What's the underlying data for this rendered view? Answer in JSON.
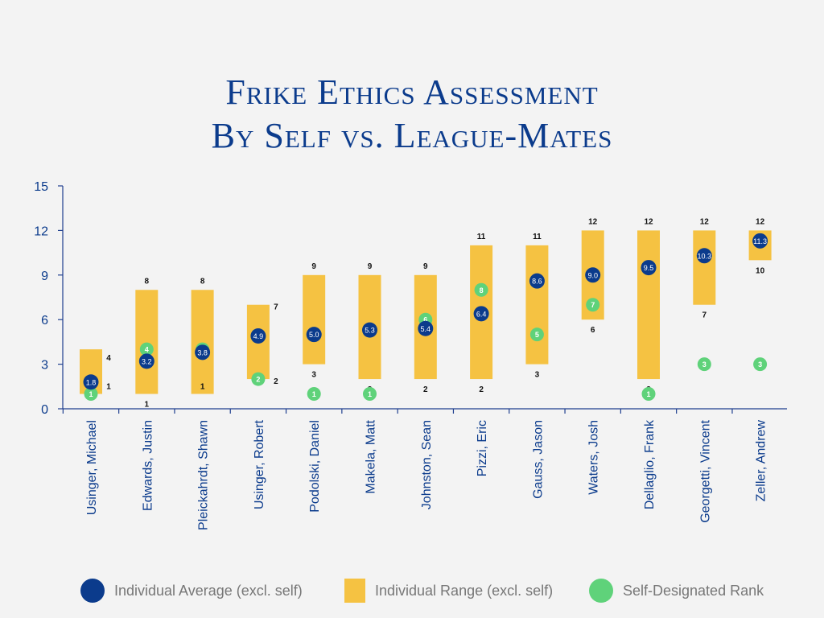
{
  "title": {
    "line1": "Frike Ethics Assessment",
    "line2": "By Self vs. League-Mates"
  },
  "colors": {
    "average": "#0b3b8c",
    "range": "#f5c242",
    "self_rank": "#5fd27a",
    "axis": "#1f3f8f",
    "tick_text": "#0b3b8c",
    "label_text": "#0b3b8c"
  },
  "legend": [
    {
      "key": "average",
      "label": "Individual Average (excl. self)"
    },
    {
      "key": "range",
      "label": "Individual Range (excl. self)"
    },
    {
      "key": "self_rank",
      "label": "Self-Designated Rank"
    }
  ],
  "chart_data": {
    "type": "bar",
    "ylim": [
      0,
      15
    ],
    "yticks": [
      0,
      3,
      6,
      9,
      12,
      15
    ],
    "grid": false,
    "legend_position": "bottom",
    "categories": [
      "Usinger, Michael",
      "Edwards, Justin",
      "Pleickahrdt, Shawn",
      "Usinger, Robert",
      "Podolski, Daniel",
      "Makela, Matt",
      "Johnston, Sean",
      "Pizzi, Eric",
      "Gauss, Jason",
      "Waters, Josh",
      "Dellaglio, Frank",
      "Georgetti, Vincent",
      "Zeller, Andrew"
    ],
    "series": [
      {
        "name": "Individual Range (excl. self) - Min",
        "values": [
          1,
          1,
          1,
          2,
          3,
          2,
          2,
          2,
          3,
          6,
          2,
          7,
          10
        ]
      },
      {
        "name": "Individual Range (excl. self) - Max",
        "values": [
          4,
          8,
          8,
          7,
          9,
          9,
          9,
          11,
          11,
          12,
          12,
          12,
          12
        ]
      },
      {
        "name": "Individual Average (excl. self)",
        "values": [
          1.8,
          3.2,
          3.8,
          4.9,
          5.0,
          5.3,
          5.4,
          6.4,
          8.6,
          9.0,
          9.5,
          10.3,
          11.3
        ]
      },
      {
        "name": "Self-Designated Rank",
        "values": [
          1,
          4,
          4,
          2,
          1,
          1,
          6,
          8,
          5,
          7,
          1,
          3,
          3
        ]
      }
    ],
    "min_labels": [
      "1",
      "1",
      "1",
      "2",
      "3",
      "2",
      "2",
      "2",
      "3",
      "6",
      "2",
      "7",
      "10"
    ],
    "max_labels": [
      "4",
      "8",
      "8",
      "7",
      "9",
      "9",
      "9",
      "11",
      "11",
      "12",
      "12",
      "12",
      "12"
    ],
    "avg_labels": [
      "1.8",
      "3.2",
      "3.8",
      "4.9",
      "5.0",
      "5.3",
      "5.4",
      "6.4",
      "8.6",
      "9.0",
      "9.5",
      "10.3",
      "11.3"
    ],
    "self_labels": [
      "1",
      "4",
      "4",
      "2",
      "1",
      "1",
      "6",
      "8",
      "5",
      "7",
      "1",
      "3",
      "3"
    ]
  }
}
